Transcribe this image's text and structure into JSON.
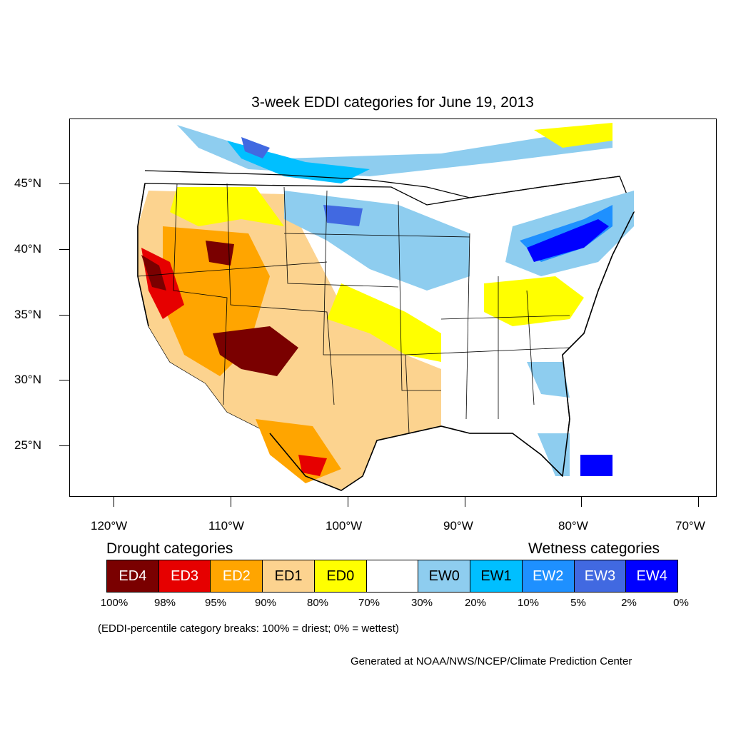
{
  "title": "3-week EDDI categories for June 19, 2013",
  "map": {
    "lat_labels": [
      "45°N",
      "40°N",
      "35°N",
      "30°N",
      "25°N"
    ],
    "lon_labels": [
      "120°W",
      "110°W",
      "100°W",
      "90°W",
      "80°W",
      "70°W"
    ]
  },
  "legend": {
    "drought_heading": "Drought categories",
    "wetness_heading": "Wetness categories",
    "categories": [
      {
        "label": "ED4",
        "color": "#7a0000"
      },
      {
        "label": "ED3",
        "color": "#e60000"
      },
      {
        "label": "ED2",
        "color": "#ffa500"
      },
      {
        "label": "ED1",
        "color": "#fcd38f"
      },
      {
        "label": "ED0",
        "color": "#ffff00"
      },
      {
        "label": "",
        "color": "#ffffff"
      },
      {
        "label": "EW0",
        "color": "#8ecdef"
      },
      {
        "label": "EW1",
        "color": "#00bfff"
      },
      {
        "label": "EW2",
        "color": "#1e90ff"
      },
      {
        "label": "EW3",
        "color": "#4169e1"
      },
      {
        "label": "EW4",
        "color": "#0000ff"
      }
    ],
    "breaks": [
      "100%",
      "98%",
      "95%",
      "90%",
      "80%",
      "70%",
      "30%",
      "20%",
      "10%",
      "5%",
      "2%",
      "0%"
    ]
  },
  "note": "(EDDI-percentile category breaks: 100% = driest; 0% = wettest)",
  "credit": "Generated at NOAA/NWS/NCEP/Climate Prediction Center"
}
